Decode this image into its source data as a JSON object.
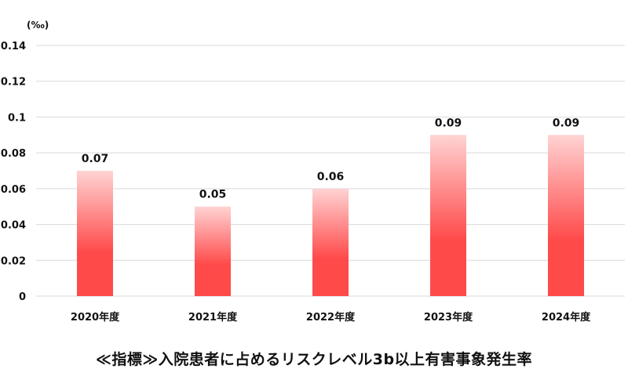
{
  "chart_data": {
    "type": "bar",
    "title": "≪指標≫入院患者に占めるリスクレベル3b以上有害事象発生率",
    "unit_label": "(‰)",
    "xlabel": "",
    "ylabel": "",
    "categories": [
      "2020年度",
      "2021年度",
      "2022年度",
      "2023年度",
      "2024年度"
    ],
    "values": [
      0.07,
      0.05,
      0.06,
      0.09,
      0.09
    ],
    "data_labels": [
      "0.07",
      "0.05",
      "0.06",
      "0.09",
      "0.09"
    ],
    "y_ticks": [
      0,
      0.02,
      0.04,
      0.06,
      0.08,
      0.1,
      0.12,
      0.14
    ],
    "y_tick_labels": [
      "0",
      "0.02",
      "0.04",
      "0.06",
      "0.08",
      "0.1",
      "0.12",
      "0.14"
    ],
    "ylim": [
      0,
      0.14
    ],
    "grid": true,
    "legend": "none",
    "colors": {
      "bar_top": "#ffd3d3",
      "bar_bottom": "#ff4a4a",
      "grid": "#d9d9d9"
    }
  }
}
